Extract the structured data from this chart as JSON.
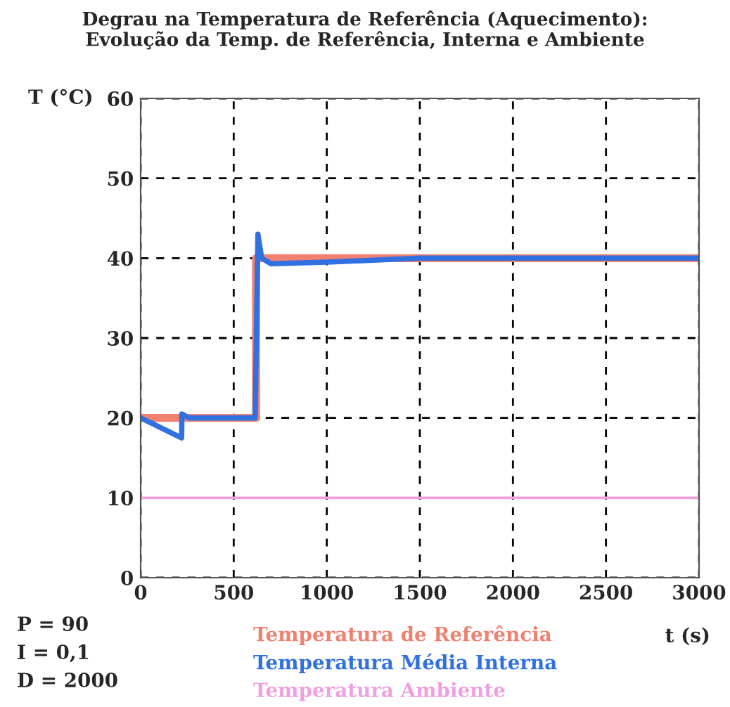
{
  "chart_data": {
    "type": "line",
    "title": "Degrau na Temperatura de Referência (Aquecimento):\nEvolução da Temp. de Referência, Interna e Ambiente",
    "xlabel": "t (s)",
    "ylabel": "T (°C)",
    "xlim": [
      0,
      3000
    ],
    "xticks": [
      0,
      500,
      1000,
      1500,
      2000,
      2500,
      3000
    ],
    "ylim": [
      0,
      60
    ],
    "yticks": [
      0,
      10,
      20,
      30,
      40,
      50,
      60
    ],
    "grid": true,
    "legend": "bottom",
    "line_style": "solid",
    "marker": "none",
    "annotations": [
      "P = 90",
      "I = 0,1",
      "D = 2000"
    ],
    "series": [
      {
        "name": "Temperatura de Referência",
        "color": "#f08070",
        "x": [
          0,
          620,
          620,
          3000
        ],
        "values": [
          20,
          20,
          40,
          40
        ]
      },
      {
        "name": "Temperatura Média Interna",
        "color": "#3070e0",
        "x": [
          0,
          220,
          222,
          260,
          615,
          630,
          650,
          700,
          1000,
          1500,
          3000
        ],
        "values": [
          20,
          17.5,
          20.5,
          20,
          20,
          43,
          40,
          39.3,
          39.5,
          40,
          40
        ]
      },
      {
        "name": "Temperatura Ambiente",
        "color": "#f0a0e0",
        "x": [
          0,
          3000
        ],
        "values": [
          10,
          10
        ]
      }
    ]
  }
}
